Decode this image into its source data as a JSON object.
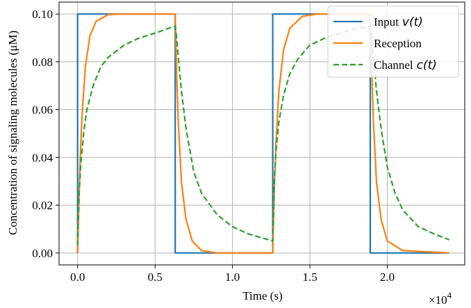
{
  "chart_data": {
    "type": "line",
    "title": "",
    "xlabel": "Time (s)",
    "ylabel": "Concentration of signaling molecules (μM)",
    "x_scale_label": "×10",
    "x_scale_exp": "4",
    "xlim": [
      -0.12,
      2.5
    ],
    "ylim": [
      -0.005,
      0.105
    ],
    "grid": true,
    "legend_position": "top-right",
    "x_ticks": [
      0.0,
      0.5,
      1.0,
      1.5,
      2.0
    ],
    "x_tick_labels": [
      "0.0",
      "0.5",
      "1.0",
      "1.5",
      "2.0"
    ],
    "y_ticks": [
      0.0,
      0.02,
      0.04,
      0.06,
      0.08,
      0.1
    ],
    "y_tick_labels": [
      "0.00",
      "0.02",
      "0.04",
      "0.06",
      "0.08",
      "0.10"
    ],
    "series": [
      {
        "name": "Input",
        "legend_math": "v(t)",
        "color": "#1f77b4",
        "dash": "solid",
        "x": [
          0.0,
          0.0,
          0.63,
          0.63,
          1.26,
          1.26,
          1.89,
          1.89,
          2.4
        ],
        "y": [
          0.0,
          0.1,
          0.1,
          0.0,
          0.0,
          0.1,
          0.1,
          0.0,
          0.0
        ]
      },
      {
        "name": "Reception",
        "legend_math": "",
        "color": "#ff7f0e",
        "dash": "solid",
        "x": [
          0.0,
          0.01,
          0.02,
          0.03,
          0.05,
          0.08,
          0.12,
          0.2,
          0.3,
          0.63,
          0.64,
          0.65,
          0.67,
          0.7,
          0.74,
          0.8,
          0.9,
          1.26,
          1.27,
          1.28,
          1.3,
          1.33,
          1.37,
          1.45,
          1.55,
          1.89,
          1.9,
          1.91,
          1.93,
          1.96,
          2.0,
          2.1,
          2.4
        ],
        "y": [
          0.0,
          0.026,
          0.045,
          0.059,
          0.078,
          0.091,
          0.097,
          0.0998,
          0.1,
          0.1,
          0.074,
          0.055,
          0.03,
          0.014,
          0.005,
          0.001,
          0.0,
          0.0,
          0.026,
          0.045,
          0.068,
          0.085,
          0.094,
          0.099,
          0.1,
          0.1,
          0.074,
          0.055,
          0.03,
          0.014,
          0.005,
          0.001,
          0.0
        ]
      },
      {
        "name": "Channel",
        "legend_math": "c(t)",
        "color": "#2ca02c",
        "dash": "dashed",
        "x": [
          0.0,
          0.01,
          0.02,
          0.04,
          0.06,
          0.1,
          0.15,
          0.2,
          0.3,
          0.4,
          0.5,
          0.63,
          0.64,
          0.65,
          0.67,
          0.7,
          0.75,
          0.8,
          0.9,
          1.0,
          1.1,
          1.26,
          1.27,
          1.28,
          1.3,
          1.33,
          1.37,
          1.42,
          1.5,
          1.6,
          1.7,
          1.8,
          1.89,
          1.9,
          1.91,
          1.93,
          1.96,
          2.0,
          2.05,
          2.1,
          2.2,
          2.3,
          2.4
        ],
        "y": [
          0.003,
          0.025,
          0.037,
          0.051,
          0.06,
          0.07,
          0.078,
          0.082,
          0.087,
          0.09,
          0.092,
          0.095,
          0.09,
          0.082,
          0.068,
          0.052,
          0.034,
          0.025,
          0.016,
          0.011,
          0.008,
          0.005,
          0.03,
          0.042,
          0.055,
          0.066,
          0.075,
          0.081,
          0.087,
          0.09,
          0.092,
          0.094,
          0.095,
          0.09,
          0.082,
          0.068,
          0.052,
          0.036,
          0.025,
          0.018,
          0.011,
          0.008,
          0.0055
        ]
      }
    ]
  }
}
